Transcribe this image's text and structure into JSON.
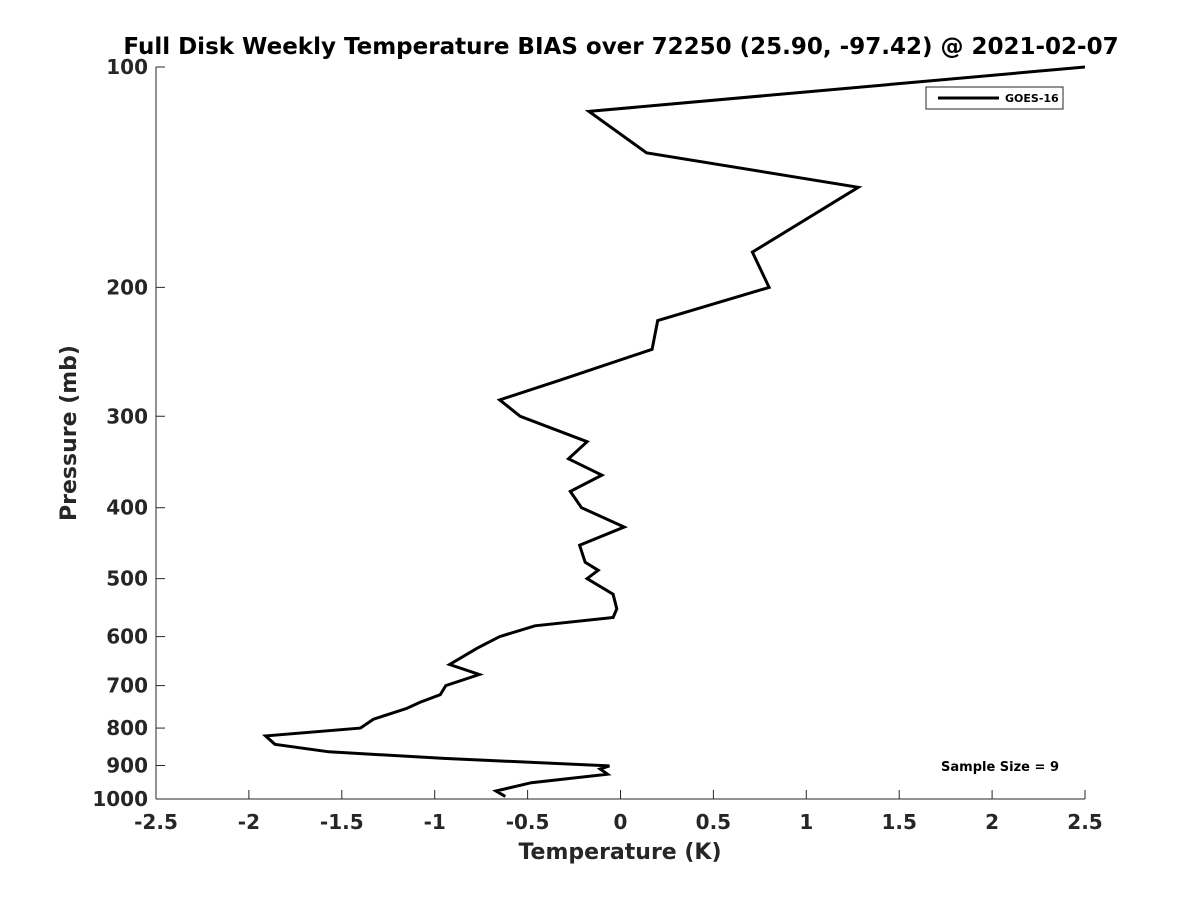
{
  "chart_data": {
    "type": "line",
    "title": "Full Disk Weekly Temperature BIAS over 72250 (25.90, -97.42) @ 2021-02-07",
    "xlabel": "Temperature (K)",
    "ylabel": "Pressure (mb)",
    "xlim": [
      -2.5,
      2.5
    ],
    "ylim": [
      1000,
      100
    ],
    "yscale": "log",
    "y_reversed": true,
    "grid": false,
    "xticks": [
      -2.5,
      -2,
      -1.5,
      -1,
      -0.5,
      0,
      0.5,
      1,
      1.5,
      2,
      2.5
    ],
    "xtick_labels": [
      "-2.5",
      "-2",
      "-1.5",
      "-1",
      "-0.5",
      "0",
      "0.5",
      "1",
      "1.5",
      "2",
      "2.5"
    ],
    "yticks": [
      100,
      200,
      300,
      400,
      500,
      600,
      700,
      800,
      900,
      1000
    ],
    "ytick_labels": [
      "100",
      "200",
      "300",
      "400",
      "500",
      "600",
      "700",
      "800",
      "900",
      "1000"
    ],
    "legend": {
      "location": "top-right",
      "entries": [
        "GOES-16"
      ]
    },
    "series": [
      {
        "name": "GOES-16",
        "color": "#000000",
        "points": [
          {
            "x": 2.5,
            "y": 100
          },
          {
            "x": -0.17,
            "y": 115
          },
          {
            "x": 0.14,
            "y": 131
          },
          {
            "x": 1.28,
            "y": 146
          },
          {
            "x": 0.71,
            "y": 179
          },
          {
            "x": 0.8,
            "y": 200
          },
          {
            "x": 0.2,
            "y": 222
          },
          {
            "x": 0.17,
            "y": 243
          },
          {
            "x": -0.33,
            "y": 268
          },
          {
            "x": -0.65,
            "y": 285
          },
          {
            "x": -0.54,
            "y": 300
          },
          {
            "x": -0.18,
            "y": 325
          },
          {
            "x": -0.28,
            "y": 343
          },
          {
            "x": -0.1,
            "y": 361
          },
          {
            "x": -0.27,
            "y": 380
          },
          {
            "x": -0.21,
            "y": 400
          },
          {
            "x": 0.02,
            "y": 425
          },
          {
            "x": -0.22,
            "y": 450
          },
          {
            "x": -0.19,
            "y": 475
          },
          {
            "x": -0.12,
            "y": 487
          },
          {
            "x": -0.18,
            "y": 500
          },
          {
            "x": -0.04,
            "y": 525
          },
          {
            "x": -0.02,
            "y": 550
          },
          {
            "x": -0.04,
            "y": 565
          },
          {
            "x": -0.46,
            "y": 580
          },
          {
            "x": -0.65,
            "y": 600
          },
          {
            "x": -0.77,
            "y": 622
          },
          {
            "x": -0.92,
            "y": 655
          },
          {
            "x": -0.76,
            "y": 676
          },
          {
            "x": -0.94,
            "y": 700
          },
          {
            "x": -0.97,
            "y": 720
          },
          {
            "x": -1.08,
            "y": 738
          },
          {
            "x": -1.15,
            "y": 752
          },
          {
            "x": -1.33,
            "y": 778
          },
          {
            "x": -1.4,
            "y": 800
          },
          {
            "x": -1.91,
            "y": 820
          },
          {
            "x": -1.86,
            "y": 842
          },
          {
            "x": -1.57,
            "y": 862
          },
          {
            "x": -0.95,
            "y": 880
          },
          {
            "x": -0.06,
            "y": 901
          },
          {
            "x": -0.11,
            "y": 910
          },
          {
            "x": -0.07,
            "y": 925
          },
          {
            "x": -0.48,
            "y": 950
          },
          {
            "x": -0.67,
            "y": 975
          },
          {
            "x": -0.62,
            "y": 992
          }
        ]
      }
    ],
    "annotations": [
      "Sample Size = 9"
    ]
  }
}
